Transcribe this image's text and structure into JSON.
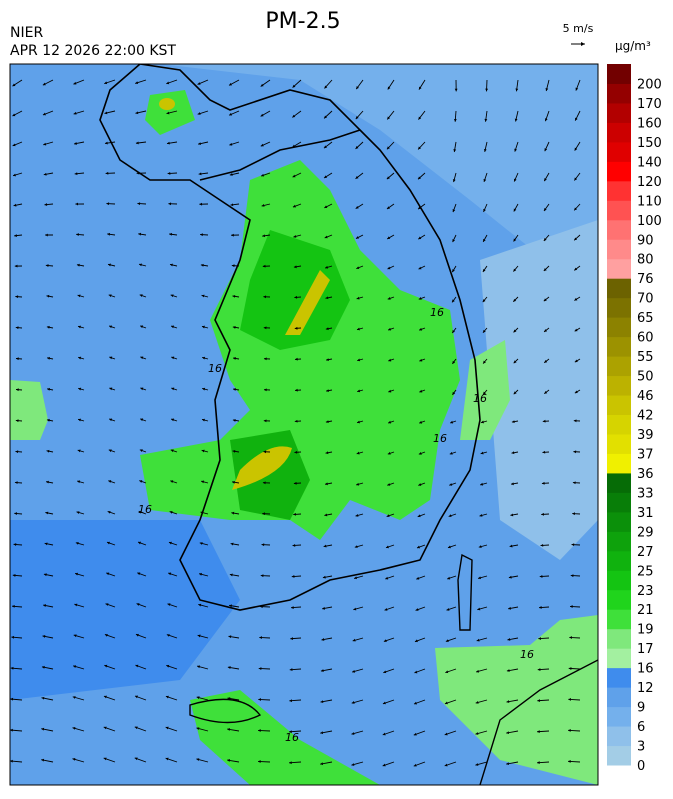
{
  "header": {
    "title": "PM-2.5",
    "agency": "NIER",
    "datetime": "APR 12 2026 22:00 KST"
  },
  "wind_scale": {
    "label": "5 m/s"
  },
  "colorbar": {
    "unit": "μg/m³",
    "ticks": [
      "0",
      "3",
      "6",
      "9",
      "12",
      "16",
      "17",
      "19",
      "21",
      "23",
      "25",
      "27",
      "29",
      "31",
      "33",
      "36",
      "37",
      "39",
      "42",
      "46",
      "50",
      "55",
      "60",
      "65",
      "70",
      "76",
      "80",
      "90",
      "100",
      "110",
      "120",
      "140",
      "150",
      "160",
      "170",
      "200"
    ],
    "colors": [
      "#a3cde6",
      "#8fc0ea",
      "#74b0ec",
      "#5fa1ea",
      "#3f8ced",
      "#a3f0a0",
      "#7fe87c",
      "#3fe03a",
      "#20d41c",
      "#14c412",
      "#10b20e",
      "#0ea20c",
      "#0b900a",
      "#087e08",
      "#066c06",
      "#f0f000",
      "#e2e000",
      "#d6d400",
      "#cac400",
      "#bcb200",
      "#aca200",
      "#9c9200",
      "#8c8200",
      "#7c7200",
      "#6c6200",
      "#ffa0a0",
      "#ff8a8a",
      "#ff7272",
      "#ff5252",
      "#ff3232",
      "#ff0000",
      "#e00000",
      "#cc0000",
      "#b20000",
      "#940000",
      "#720000"
    ]
  },
  "contour_labels": [
    "16",
    "16",
    "16",
    "16",
    "16",
    "16",
    "16"
  ]
}
